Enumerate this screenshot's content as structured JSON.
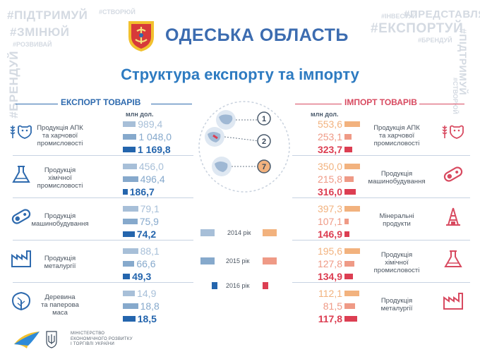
{
  "region_title": "ОДЕСЬКА ОБЛАСТЬ",
  "main_title": "Структура експорту та імпорту",
  "tags": {
    "support": "#ПІДТРИМУЙ",
    "create": "#СТВОРЮЙ",
    "change": "#ЗМІНЮЙ",
    "develop": "#РОЗВИВАЙ",
    "brand_left": "#БРЕНДУЙ",
    "invest": "#ІНВЕСТУЙ",
    "represent": "#ПРЕДСТАВЛЯЙ",
    "export": "#ЕКСПОРТУЙ",
    "brand_right": "#БРЕНДУЙ",
    "support_vert": "#ПІДТРИМУЙ",
    "create_vert": "#СТВОРЮЙ"
  },
  "colors": {
    "export_2014": "#a7bfd8",
    "export_2015": "#86a9cc",
    "export_2016": "#2465ad",
    "import_2014": "#f2b27e",
    "import_2015": "#ef9a86",
    "import_2016": "#dc3e52",
    "icon_left": "#2e6aae",
    "icon_right": "#d84a60"
  },
  "chart_data": [
    {
      "type": "bar",
      "title": "ЕКСПОРТ ТОВАРІВ",
      "unit": "млн дол.",
      "categories": [
        "Продукція АПК та харчової промисловості",
        "Продукція хімічної промисловості",
        "Продукція машинобудування",
        "Продукція металургії",
        "Деревина та паперова маса"
      ],
      "category_lines": [
        [
          "Продукція АПК",
          "та харчової",
          "промисловості"
        ],
        [
          "Продукція",
          "хімічної",
          "промисловості"
        ],
        [
          "Продукція",
          "машинобудування"
        ],
        [
          "Продукція",
          "металургії"
        ],
        [
          "Деревина",
          "та паперова",
          "маса"
        ]
      ],
      "series": [
        {
          "name": "2014 рік",
          "values": [
            989.4,
            456.0,
            79.1,
            88.1,
            14.9
          ],
          "labels": [
            "989,4",
            "456,0",
            "79,1",
            "88,1",
            "14,9"
          ]
        },
        {
          "name": "2015 рік",
          "values": [
            1048.0,
            496.4,
            75.9,
            66.6,
            18.8
          ],
          "labels": [
            "1 048,0",
            "496,4",
            "75,9",
            "66,6",
            "18,8"
          ]
        },
        {
          "name": "2016 рік",
          "values": [
            1169.8,
            186.7,
            74.2,
            49.3,
            18.5
          ],
          "labels": [
            "1 169,8",
            "186,7",
            "74,2",
            "49,3",
            "18,5"
          ]
        }
      ],
      "icons": [
        "cow-wheat-icon",
        "flask-icon",
        "gear-bolt-icon",
        "factory-icon",
        "leaf-icon"
      ]
    },
    {
      "type": "bar",
      "title": "ІМПОРТ ТОВАРІВ",
      "unit": "млн дол.",
      "categories": [
        "Продукція АПК та харчової промисловості",
        "Продукція машинобудування",
        "Мінеральні продукти",
        "Продукція хімічної промисловості",
        "Продукція металургії"
      ],
      "category_lines": [
        [
          "Продукція АПК",
          "та харчової",
          "промисловості"
        ],
        [
          "Продукція",
          "машинобудування"
        ],
        [
          "Мінеральні",
          "продукти"
        ],
        [
          "Продукція",
          "хімічної",
          "промисловості"
        ],
        [
          "Продукція",
          "металургії"
        ]
      ],
      "series": [
        {
          "name": "2014 рік",
          "values": [
            553.6,
            350.0,
            397.3,
            195.6,
            112.1
          ],
          "labels": [
            "553,6",
            "350,0",
            "397,3",
            "195,6",
            "112,1"
          ]
        },
        {
          "name": "2015 рік",
          "values": [
            253.1,
            215.8,
            107.1,
            127.8,
            81.5
          ],
          "labels": [
            "253,1",
            "215,8",
            "107,1",
            "127,8",
            "81,5"
          ]
        },
        {
          "name": "2016 рік",
          "values": [
            323.7,
            316.0,
            146.9,
            134.9,
            117.8
          ],
          "labels": [
            "323,7",
            "316,0",
            "146,9",
            "134,9",
            "117,8"
          ]
        }
      ],
      "icons": [
        "cow-wheat-icon",
        "gear-bolt-icon",
        "oil-derrick-icon",
        "flask-icon",
        "factory-icon"
      ]
    }
  ],
  "legend": [
    "2014 рік",
    "2015 рік",
    "2016 рік"
  ],
  "map_ranks": [
    "1",
    "2",
    "7"
  ],
  "footer": {
    "line1": "МІНІСТЕРСТВО",
    "line2": "ЕКОНОМІЧНОГО РОЗВИТКУ",
    "line3": "І ТОРГІВЛІ УКРАЇНИ"
  }
}
